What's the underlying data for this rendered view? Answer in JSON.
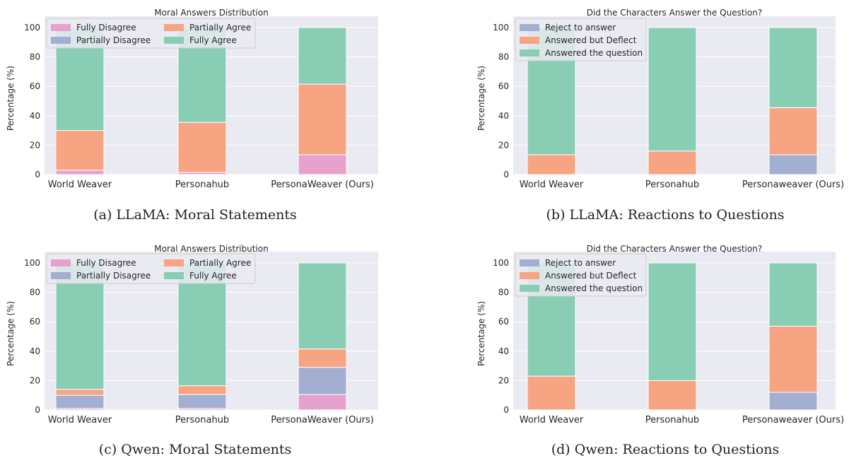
{
  "colors": {
    "Fully Disagree": "#e7a1cd",
    "Partially Disagree": "#a3afd1",
    "Partially Agree": "#f6a482",
    "Fully Agree": "#89cdb5",
    "Reject to answer": "#a3afd1",
    "Answered but Deflect": "#f6a482",
    "Answered the question": "#89cdb5",
    "panel_bg": "#eaeaf2",
    "grid": "#ffffff"
  },
  "chart_data": [
    {
      "type": "bar",
      "stacked": true,
      "title": "Moral Answers Distribution",
      "caption": "(a) LLaMA: Moral Statements",
      "xlabel": "",
      "ylabel": "Percentage (%)",
      "ylim": [
        0,
        100
      ],
      "yticks": [
        "0",
        "20",
        "40",
        "60",
        "80",
        "100"
      ],
      "grid": true,
      "legend_position": "top-left",
      "legend_columns": 2,
      "categories": [
        "World Weaver",
        "Personahub",
        "PersonaWeaver (Ours)"
      ],
      "series": [
        {
          "name": "Fully Disagree",
          "values": [
            3,
            1.5,
            13.5
          ]
        },
        {
          "name": "Partially Disagree",
          "values": [
            0,
            0,
            0
          ]
        },
        {
          "name": "Partially Agree",
          "values": [
            27,
            34,
            48
          ]
        },
        {
          "name": "Fully Agree",
          "values": [
            70,
            64.5,
            38.5
          ]
        }
      ]
    },
    {
      "type": "bar",
      "stacked": true,
      "title": "Did the Characters Answer the Question?",
      "caption": "(b) LLaMA: Reactions to Questions",
      "xlabel": "",
      "ylabel": "Percentage (%)",
      "ylim": [
        0,
        100
      ],
      "yticks": [
        "0",
        "20",
        "40",
        "60",
        "80",
        "100"
      ],
      "grid": true,
      "legend_position": "top-left",
      "legend_columns": 1,
      "categories": [
        "World Weaver",
        "Personahub",
        "Personaweaver (Ours)"
      ],
      "series": [
        {
          "name": "Reject to answer",
          "values": [
            0,
            0,
            13.5
          ]
        },
        {
          "name": "Answered but Deflect",
          "values": [
            13.5,
            16,
            32
          ]
        },
        {
          "name": "Answered the question",
          "values": [
            86.5,
            84,
            54.5
          ]
        }
      ]
    },
    {
      "type": "bar",
      "stacked": true,
      "title": "Moral Answers Distribution",
      "caption": "(c) Qwen: Moral Statements",
      "xlabel": "",
      "ylabel": "Percentage (%)",
      "ylim": [
        0,
        100
      ],
      "yticks": [
        "0",
        "20",
        "40",
        "60",
        "80",
        "100"
      ],
      "grid": true,
      "legend_position": "top-left",
      "legend_columns": 2,
      "categories": [
        "World Weaver",
        "Personahub",
        "PersonaWeaver (Ours)"
      ],
      "series": [
        {
          "name": "Fully Disagree",
          "values": [
            1,
            1,
            10.5
          ]
        },
        {
          "name": "Partially Disagree",
          "values": [
            9,
            9.5,
            18.5
          ]
        },
        {
          "name": "Partially Agree",
          "values": [
            4,
            6,
            12.5
          ]
        },
        {
          "name": "Fully Agree",
          "values": [
            86,
            83.5,
            58.5
          ]
        }
      ]
    },
    {
      "type": "bar",
      "stacked": true,
      "title": "Did the Characters Answer the Question?",
      "caption": "(d) Qwen: Reactions to Questions",
      "xlabel": "",
      "ylabel": "Percentage (%)",
      "ylim": [
        0,
        100
      ],
      "yticks": [
        "0",
        "20",
        "40",
        "60",
        "80",
        "100"
      ],
      "grid": true,
      "legend_position": "top-left",
      "legend_columns": 1,
      "categories": [
        "World Weaver",
        "Personahub",
        "Personaweaver (Ours)"
      ],
      "series": [
        {
          "name": "Reject to answer",
          "values": [
            0,
            0,
            12
          ]
        },
        {
          "name": "Answered but Deflect",
          "values": [
            23,
            20,
            45
          ]
        },
        {
          "name": "Answered the question",
          "values": [
            77,
            80,
            43
          ]
        }
      ]
    }
  ]
}
